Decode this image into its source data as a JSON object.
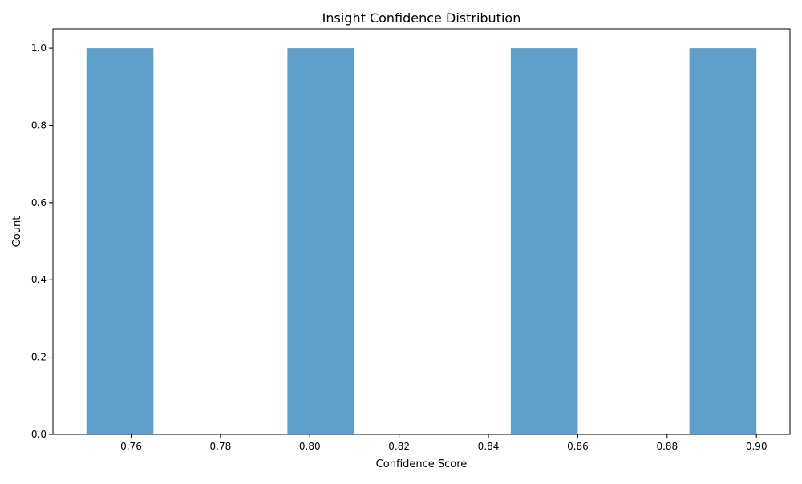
{
  "chart_data": {
    "type": "bar",
    "title": "Insight Confidence Distribution",
    "xlabel": "Confidence Score",
    "ylabel": "Count",
    "bins": [
      {
        "start": 0.75,
        "end": 0.765,
        "count": 1
      },
      {
        "start": 0.795,
        "end": 0.81,
        "count": 1
      },
      {
        "start": 0.845,
        "end": 0.86,
        "count": 1
      },
      {
        "start": 0.885,
        "end": 0.9,
        "count": 1
      }
    ],
    "xlim": [
      0.7425,
      0.9075
    ],
    "ylim": [
      0,
      1.05
    ],
    "x_ticks": [
      0.76,
      0.78,
      0.8,
      0.82,
      0.84,
      0.86,
      0.88,
      0.9
    ],
    "x_tick_labels": [
      "0.76",
      "0.78",
      "0.80",
      "0.82",
      "0.84",
      "0.86",
      "0.88",
      "0.90"
    ],
    "y_ticks": [
      0.0,
      0.2,
      0.4,
      0.6,
      0.8,
      1.0
    ],
    "y_tick_labels": [
      "0.0",
      "0.2",
      "0.4",
      "0.6",
      "0.8",
      "1.0"
    ],
    "bar_color": "#619fcb",
    "grid": false,
    "legend": "none"
  }
}
